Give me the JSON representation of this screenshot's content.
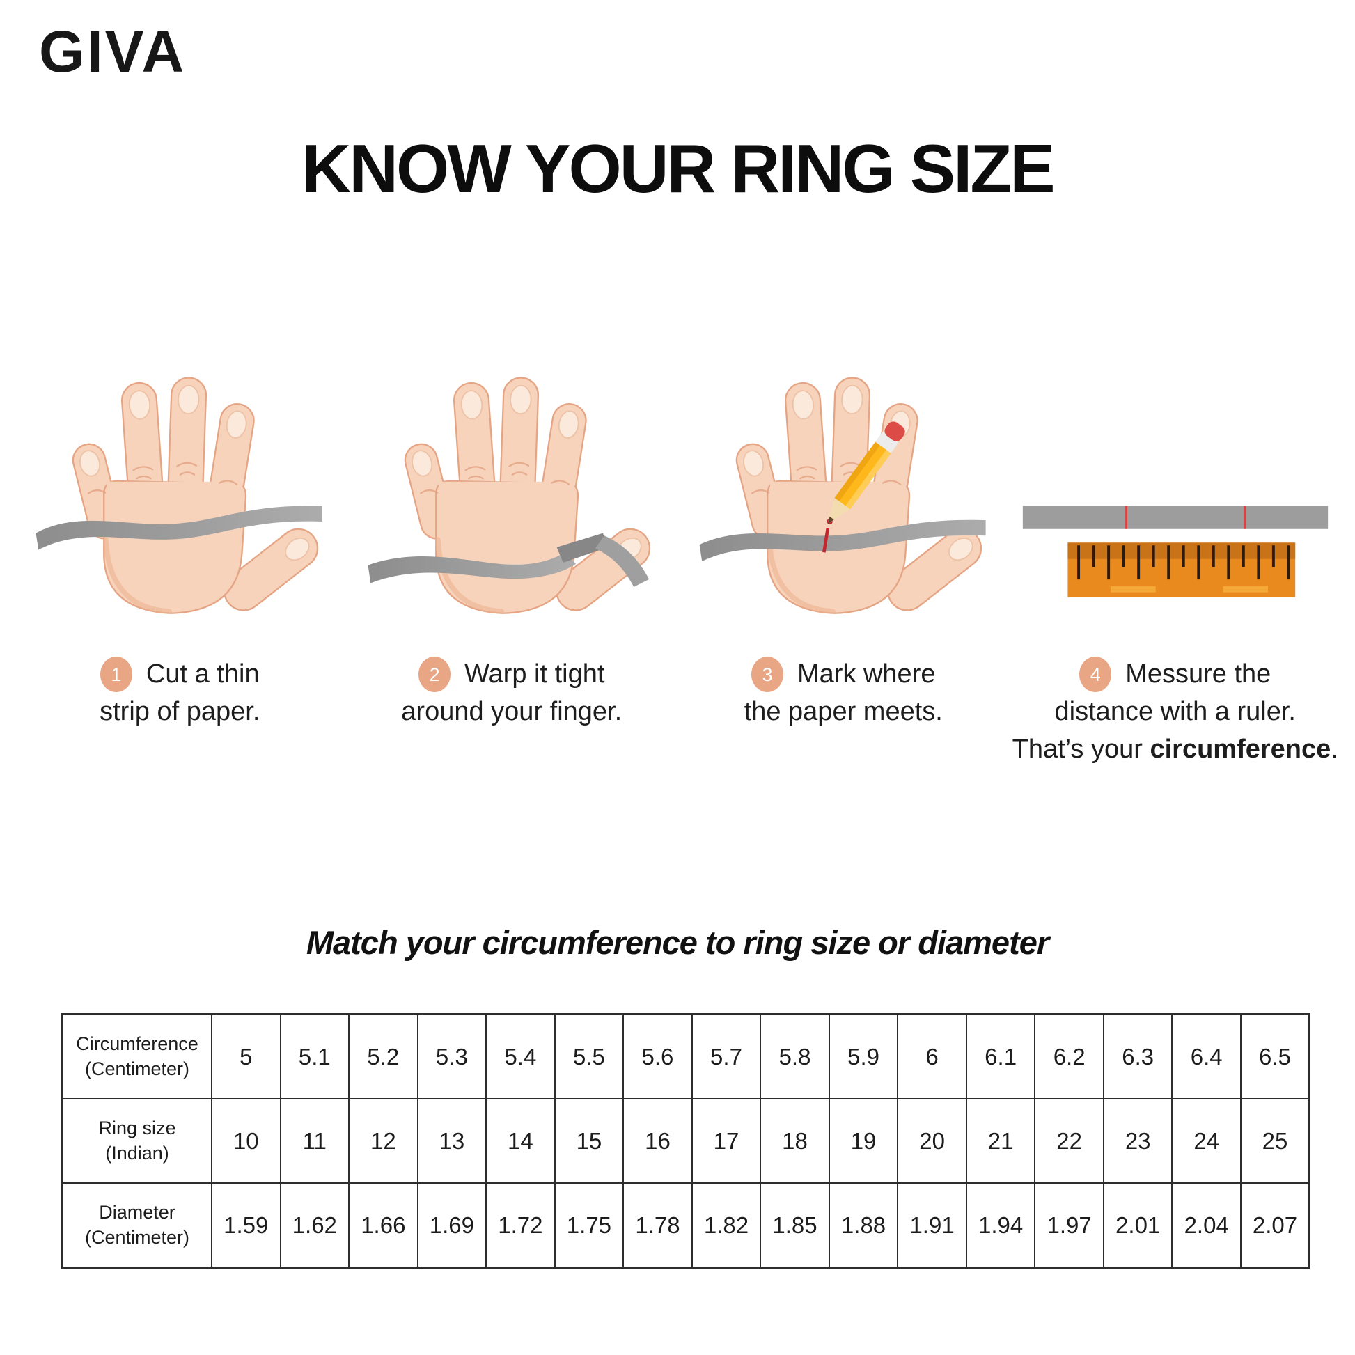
{
  "brand": {
    "name": "GIVA"
  },
  "page": {
    "title": "KNOW YOUR RING SIZE"
  },
  "steps": [
    {
      "number": "1",
      "line1": "Cut a thin",
      "line2": "strip of paper."
    },
    {
      "number": "2",
      "line1": "Warp it tight",
      "line2": "around your finger."
    },
    {
      "number": "3",
      "line1": "Mark where",
      "line2": "the paper meets."
    },
    {
      "number": "4",
      "line1": "Messure the",
      "line2": "distance with a ruler.",
      "line3_prefix": "That’s your ",
      "line3_bold": "circumference",
      "line3_suffix": "."
    }
  ],
  "match_section": {
    "heading": "Match your circumference to ring size or diameter"
  },
  "table": {
    "rows": [
      {
        "label_line1": "Circumference",
        "label_line2": "(Centimeter)",
        "values": [
          "5",
          "5.1",
          "5.2",
          "5.3",
          "5.4",
          "5.5",
          "5.6",
          "5.7",
          "5.8",
          "5.9",
          "6",
          "6.1",
          "6.2",
          "6.3",
          "6.4",
          "6.5"
        ]
      },
      {
        "label_line1": "Ring size",
        "label_line2": "(Indian)",
        "values": [
          "10",
          "11",
          "12",
          "13",
          "14",
          "15",
          "16",
          "17",
          "18",
          "19",
          "20",
          "21",
          "22",
          "23",
          "24",
          "25"
        ]
      },
      {
        "label_line1": "Diameter",
        "label_line2": "(Centimeter)",
        "values": [
          "1.59",
          "1.62",
          "1.66",
          "1.69",
          "1.72",
          "1.75",
          "1.78",
          "1.82",
          "1.85",
          "1.88",
          "1.91",
          "1.94",
          "1.97",
          "2.01",
          "2.04",
          "2.07"
        ]
      }
    ]
  },
  "graphics": {
    "icons": [
      "hand-icon",
      "paper-strip-icon",
      "pencil-icon",
      "ruler-icon",
      "step-number-badge"
    ],
    "colors": {
      "skin": "#F7D3BC",
      "skin_outline": "#E5A584",
      "strip_gray": "#9A9A9A",
      "badge_peach": "#E8A685",
      "ruler_orange": "#E98A1E",
      "ruler_band": "#C97318",
      "pencil_yellow": "#FFB81C",
      "eraser_red": "#DC4B46",
      "mark_red": "#C3272E"
    }
  }
}
